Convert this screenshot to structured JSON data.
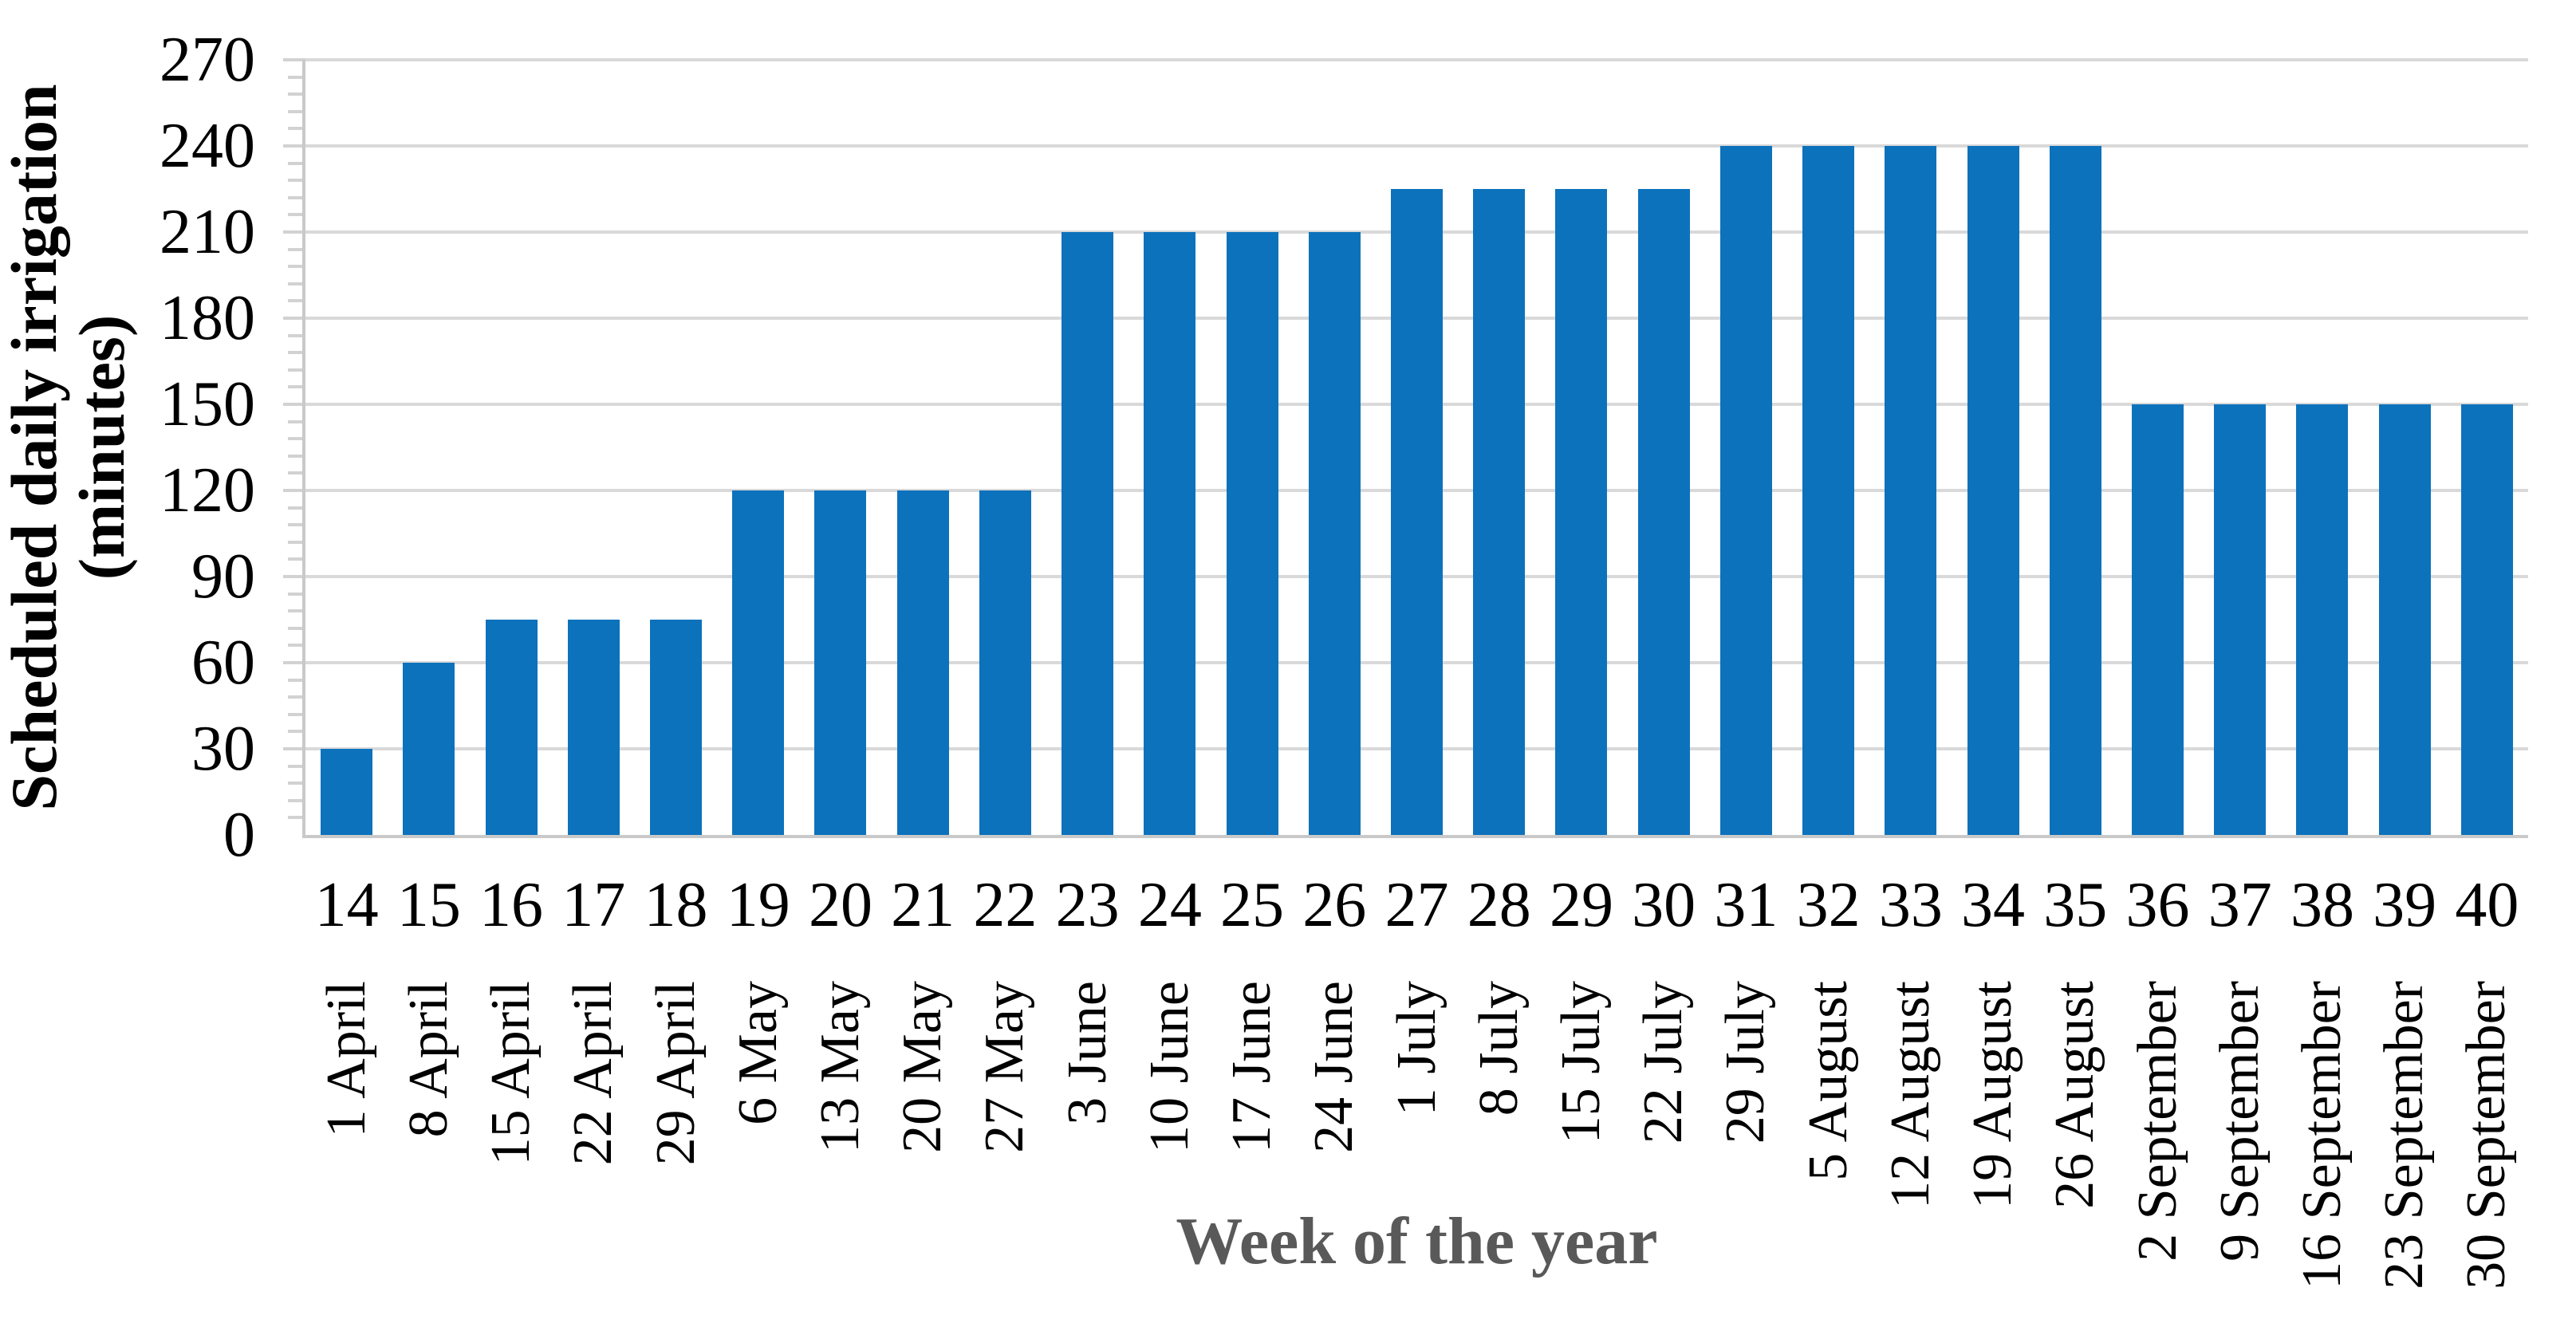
{
  "chart_data": {
    "type": "bar",
    "title": "",
    "xlabel": "Week of the year",
    "ylabel": "Scheduled daily irrigation (minutes)",
    "ylabel_lines": [
      "Scheduled daily irrigation",
      "(minutes)"
    ],
    "categories_week": [
      "14",
      "15",
      "16",
      "17",
      "18",
      "19",
      "20",
      "21",
      "22",
      "23",
      "24",
      "25",
      "26",
      "27",
      "28",
      "29",
      "30",
      "31",
      "32",
      "33",
      "34",
      "35",
      "36",
      "37",
      "38",
      "39",
      "40"
    ],
    "categories_date": [
      "1 April",
      "8 April",
      "15 April",
      "22 April",
      "29 April",
      "6 May",
      "13 May",
      "20 May",
      "27 May",
      "3 June",
      "10 June",
      "17 June",
      "24 June",
      "1 July",
      "8 July",
      "15 July",
      "22 July",
      "29 July",
      "5 August",
      "12 August",
      "19 August",
      "26 August",
      "2 September",
      "9 September",
      "16 September",
      "23 September",
      "30 September"
    ],
    "values": [
      30,
      60,
      75,
      75,
      75,
      120,
      120,
      120,
      120,
      210,
      210,
      210,
      210,
      225,
      225,
      225,
      225,
      240,
      240,
      240,
      240,
      240,
      150,
      150,
      150,
      150,
      150
    ],
    "ylim": [
      0,
      270
    ],
    "yticks": [
      0,
      30,
      60,
      90,
      120,
      150,
      180,
      210,
      240,
      270
    ],
    "ytick_step": 30,
    "yminor_step": 6,
    "grid": true,
    "legend_position": "none",
    "bar_color": "#0d72bc",
    "gridline_color": "#d9d9d9",
    "axis_color": "#c9c9c9",
    "tick_color": "#d2d2d2",
    "xlabel_color": "#595959",
    "text_color": "#000000"
  }
}
